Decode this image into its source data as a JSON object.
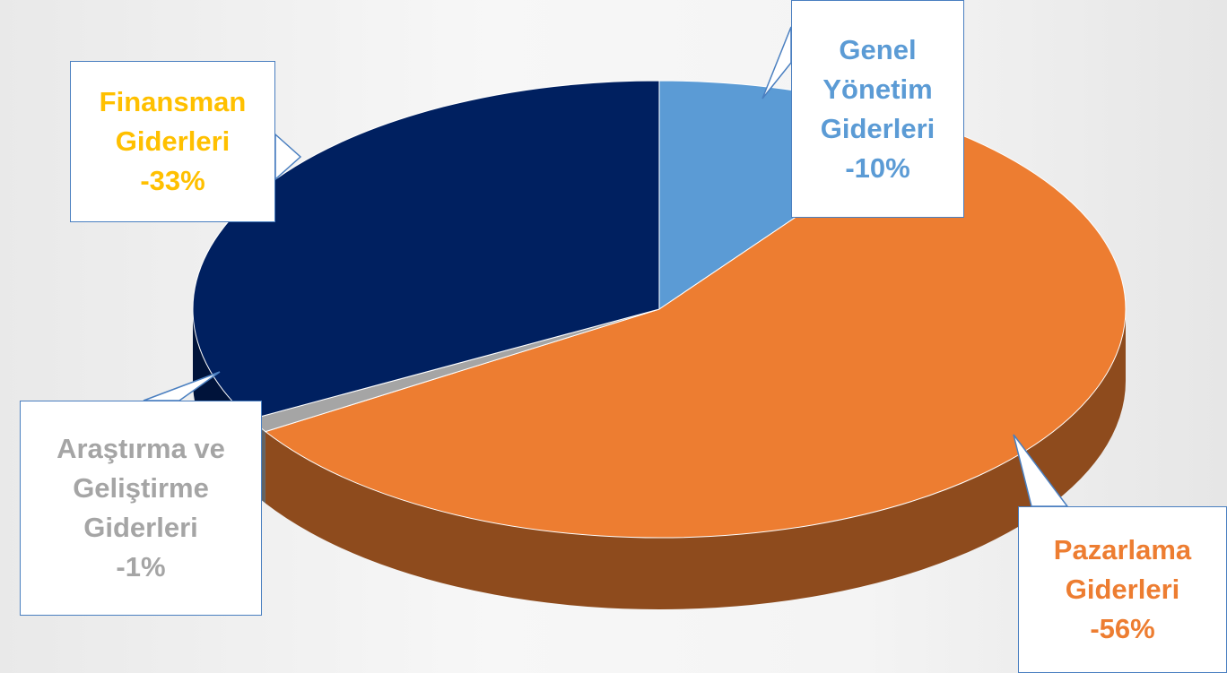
{
  "chart_data": {
    "type": "pie3d",
    "categories": [
      "Genel Yönetim Giderleri",
      "Pazarlama Giderleri",
      "Araştırma ve Geliştirme Giderleri",
      "Finansman Giderleri"
    ],
    "values": [
      -10,
      -56,
      -1,
      -33
    ],
    "value_labels": [
      "-10%",
      "-56%",
      "-1%",
      "-33%"
    ],
    "colors": [
      "#5b9bd5",
      "#ed7d31",
      "#a5a5a5",
      "#002060"
    ],
    "label_colors": [
      "#5b9bd5",
      "#ed7d31",
      "#a5a5a5",
      "#ffc000"
    ]
  }
}
